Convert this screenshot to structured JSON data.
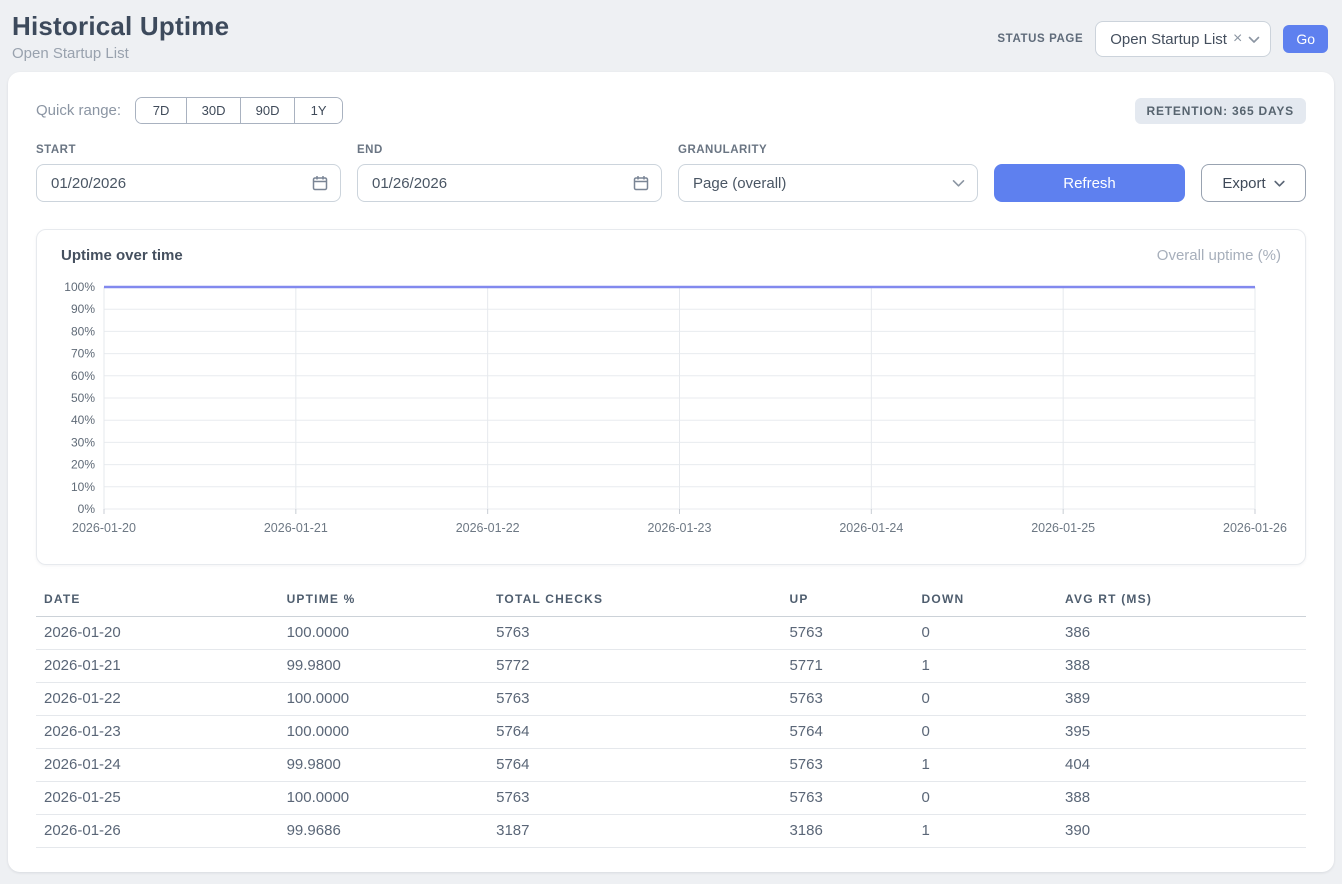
{
  "header": {
    "title": "Historical Uptime",
    "subtitle": "Open Startup List",
    "status_page_label": "STATUS PAGE",
    "status_page_value": "Open Startup List",
    "clear_glyph": "×",
    "go_label": "Go"
  },
  "controls": {
    "quick_range_label": "Quick range:",
    "quick_ranges": [
      "7D",
      "30D",
      "90D",
      "1Y"
    ],
    "retention_badge": "RETENTION: 365 DAYS",
    "start_label": "START",
    "start_value": "01/20/2026",
    "end_label": "END",
    "end_value": "01/26/2026",
    "granularity_label": "GRANULARITY",
    "granularity_value": "Page (overall)",
    "refresh_label": "Refresh",
    "export_label": "Export"
  },
  "chart": {
    "title": "Uptime over time",
    "legend": "Overall uptime (%)"
  },
  "chart_data": {
    "type": "line",
    "title": "Uptime over time",
    "categories": [
      "2026-01-20",
      "2026-01-21",
      "2026-01-22",
      "2026-01-23",
      "2026-01-24",
      "2026-01-25",
      "2026-01-26"
    ],
    "series": [
      {
        "name": "Overall uptime (%)",
        "values": [
          100.0,
          99.98,
          100.0,
          100.0,
          99.98,
          100.0,
          99.9686
        ]
      }
    ],
    "ylim": [
      0,
      100
    ],
    "y_tick_step": 10,
    "y_tick_suffix": "%",
    "grid": true,
    "legend_position": "top-right",
    "line_color": "#8289ee"
  },
  "table": {
    "columns": [
      "DATE",
      "UPTIME %",
      "TOTAL CHECKS",
      "UP",
      "DOWN",
      "AVG RT (MS)"
    ],
    "rows": [
      [
        "2026-01-20",
        "100.0000",
        "5763",
        "5763",
        "0",
        "386"
      ],
      [
        "2026-01-21",
        "99.9800",
        "5772",
        "5771",
        "1",
        "388"
      ],
      [
        "2026-01-22",
        "100.0000",
        "5763",
        "5763",
        "0",
        "389"
      ],
      [
        "2026-01-23",
        "100.0000",
        "5764",
        "5764",
        "0",
        "395"
      ],
      [
        "2026-01-24",
        "99.9800",
        "5764",
        "5763",
        "1",
        "404"
      ],
      [
        "2026-01-25",
        "100.0000",
        "5763",
        "5763",
        "0",
        "388"
      ],
      [
        "2026-01-26",
        "99.9686",
        "3187",
        "3186",
        "1",
        "390"
      ]
    ]
  },
  "colors": {
    "accent_blue": "#5e80ef",
    "chart_line": "#8289ee",
    "badge_bg": "#e4e9f0",
    "page_bg": "#eef0f3"
  }
}
